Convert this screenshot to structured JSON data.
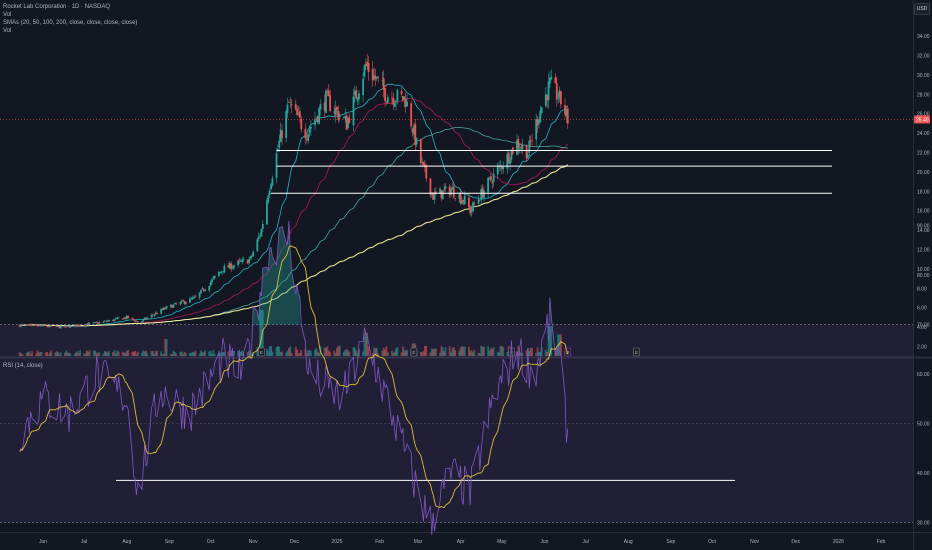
{
  "legend": {
    "symbol": "Rocket Lab Corporation · 1D · NASDAQ",
    "vol_1": "Vol",
    "smas": "SMAs (20, 50, 100, 200, close, close, close, close)",
    "vol_2": "Vol"
  },
  "rsi_legend": "RSI (14, close)",
  "currency": "USD",
  "colors": {
    "background": "#131722",
    "up": "#26a69a",
    "down": "#ef5350",
    "sma20": "#26c6da",
    "sma50": "#c2185b",
    "sma100": "#4db6ac",
    "sma200": "#fff59d",
    "rsi": "#7e57c2",
    "rsi_ma": "#fdd835",
    "level_lines": "#ffffff",
    "price_tag": "#ef5350"
  },
  "chart_data": [
    {
      "type": "candlestick",
      "panel": "price",
      "y_ticks": [
        "34.00",
        "32.00",
        "30.00",
        "28.00",
        "26.00",
        "24.00",
        "22.00",
        "20.00",
        "18.00",
        "16.00",
        "14.00",
        "12.00",
        "10.00",
        "8.00",
        "6.00",
        "4.00",
        "2.00"
      ],
      "ylim": [
        1.0,
        35.0
      ],
      "last_price": "25.40",
      "horizontal_levels": [
        22.2,
        20.6,
        17.8
      ],
      "sma_20_last": 26.8,
      "sma_50_last": 23.2,
      "sma_100_last": 23.1,
      "sma_200_last": 19.7,
      "price_path": [
        {
          "date": "2024-05-15",
          "price": 4.2
        },
        {
          "date": "2024-06-15",
          "price": 4.0
        },
        {
          "date": "2024-07-10",
          "price": 4.4
        },
        {
          "date": "2024-08-01",
          "price": 5.0
        },
        {
          "date": "2024-08-10",
          "price": 4.5
        },
        {
          "date": "2024-08-30",
          "price": 6.0
        },
        {
          "date": "2024-09-20",
          "price": 7.0
        },
        {
          "date": "2024-10-10",
          "price": 10.0
        },
        {
          "date": "2024-10-30",
          "price": 11.0
        },
        {
          "date": "2024-11-07",
          "price": 14.0
        },
        {
          "date": "2024-11-12",
          "price": 18.0
        },
        {
          "date": "2024-11-20",
          "price": 23.0
        },
        {
          "date": "2024-11-27",
          "price": 27.0
        },
        {
          "date": "2024-12-10",
          "price": 24.0
        },
        {
          "date": "2024-12-24",
          "price": 27.5
        },
        {
          "date": "2025-01-08",
          "price": 25.0
        },
        {
          "date": "2025-01-22",
          "price": 31.0
        },
        {
          "date": "2025-02-06",
          "price": 28.0
        },
        {
          "date": "2025-02-20",
          "price": 27.5
        },
        {
          "date": "2025-03-03",
          "price": 21.0
        },
        {
          "date": "2025-03-12",
          "price": 17.5
        },
        {
          "date": "2025-03-25",
          "price": 18.2
        },
        {
          "date": "2025-04-04",
          "price": 17.0
        },
        {
          "date": "2025-04-08",
          "price": 16.0
        },
        {
          "date": "2025-04-22",
          "price": 19.0
        },
        {
          "date": "2025-05-05",
          "price": 21.5
        },
        {
          "date": "2025-05-12",
          "price": 23.0
        },
        {
          "date": "2025-05-20",
          "price": 22.0
        },
        {
          "date": "2025-05-28",
          "price": 26.0
        },
        {
          "date": "2025-06-05",
          "price": 29.0
        },
        {
          "date": "2025-06-10",
          "price": 28.0
        },
        {
          "date": "2025-06-14",
          "price": 27.0
        },
        {
          "date": "2025-06-18",
          "price": 25.4
        }
      ]
    },
    {
      "type": "line",
      "panel": "rsi",
      "series_label": "RSI (14, close)",
      "y_ticks": [
        "90.00",
        "80.00",
        "70.00",
        "60.00",
        "50.00",
        "40.00",
        "30.00"
      ],
      "ylim": [
        27,
        93
      ],
      "band": [
        30,
        70
      ],
      "midline": 50,
      "trendline_value": 38.5,
      "rsi_path": [
        {
          "date": "2024-05-15",
          "value": 48
        },
        {
          "date": "2024-06-01",
          "value": 55
        },
        {
          "date": "2024-06-20",
          "value": 52
        },
        {
          "date": "2024-07-10",
          "value": 60
        },
        {
          "date": "2024-08-01",
          "value": 55
        },
        {
          "date": "2024-08-09",
          "value": 36
        },
        {
          "date": "2024-08-25",
          "value": 57
        },
        {
          "date": "2024-09-15",
          "value": 52
        },
        {
          "date": "2024-10-10",
          "value": 63
        },
        {
          "date": "2024-10-25",
          "value": 60
        },
        {
          "date": "2024-11-12",
          "value": 85
        },
        {
          "date": "2024-11-27",
          "value": 88
        },
        {
          "date": "2024-12-12",
          "value": 60
        },
        {
          "date": "2025-01-05",
          "value": 55
        },
        {
          "date": "2025-01-22",
          "value": 67
        },
        {
          "date": "2025-02-10",
          "value": 52
        },
        {
          "date": "2025-03-01",
          "value": 36
        },
        {
          "date": "2025-03-10",
          "value": 30
        },
        {
          "date": "2025-03-25",
          "value": 40
        },
        {
          "date": "2025-04-08",
          "value": 36
        },
        {
          "date": "2025-04-25",
          "value": 55
        },
        {
          "date": "2025-05-12",
          "value": 65
        },
        {
          "date": "2025-05-25",
          "value": 60
        },
        {
          "date": "2025-06-05",
          "value": 71
        },
        {
          "date": "2025-06-12",
          "value": 62
        },
        {
          "date": "2025-06-18",
          "value": 48
        }
      ]
    }
  ],
  "x_ticks": [
    "Jun",
    "Jul",
    "Aug",
    "Sep",
    "Oct",
    "Nov",
    "Dec",
    "2025",
    "Feb",
    "Mar",
    "Apr",
    "May",
    "Jun",
    "Jul",
    "Aug",
    "Sep",
    "Oct",
    "Nov",
    "Dec",
    "2026",
    "Feb"
  ],
  "event_markers": [
    {
      "date": "2024-11-07",
      "label": "E"
    },
    {
      "date": "2025-02-26",
      "label": "E"
    },
    {
      "date": "2025-05-08",
      "label": "E"
    },
    {
      "date": "2025-06-18",
      "label": "D"
    },
    {
      "date": "2025-08-07",
      "label": "E"
    }
  ]
}
